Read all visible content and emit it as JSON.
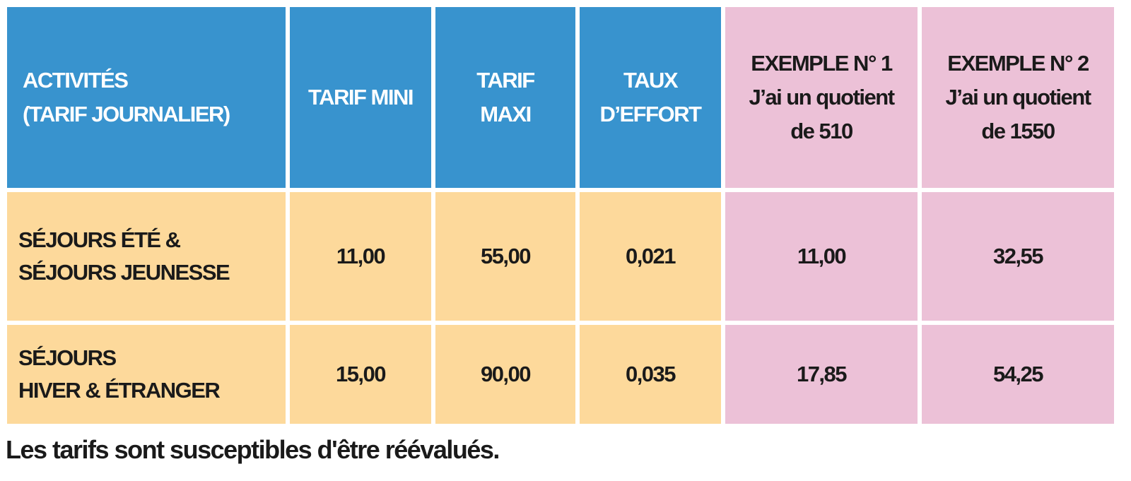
{
  "table": {
    "header": {
      "activites": [
        "ACTIVITÉS",
        "(TARIF JOURNALIER)"
      ],
      "tarif_mini": [
        "TARIF MINI"
      ],
      "tarif_maxi": [
        "TARIF",
        "MAXI"
      ],
      "taux_effort": [
        "TAUX",
        "D’EFFORT"
      ],
      "exemple_1": [
        "EXEMPLE N° 1",
        "J’ai un quotient",
        "de 510"
      ],
      "exemple_2": [
        "EXEMPLE N° 2",
        "J’ai un quotient",
        "de 1550"
      ]
    },
    "rows": [
      {
        "activite": [
          "SÉJOURS ÉTÉ &",
          "SÉJOURS JEUNESSE"
        ],
        "tarif_mini": "11,00",
        "tarif_maxi": "55,00",
        "taux_effort": "0,021",
        "exemple_1": "11,00",
        "exemple_2": "32,55"
      },
      {
        "activite": [
          "SÉJOURS",
          "HIVER & ÉTRANGER"
        ],
        "tarif_mini": "15,00",
        "tarif_maxi": "90,00",
        "taux_effort": "0,035",
        "exemple_1": "17,85",
        "exemple_2": "54,25"
      }
    ]
  },
  "footnote": "Les tarifs sont susceptibles d'être réévalués.",
  "colors": {
    "header_blue": "#3893ce",
    "row_yellow": "#fdd99b",
    "example_pink": "#ecc1d7"
  }
}
